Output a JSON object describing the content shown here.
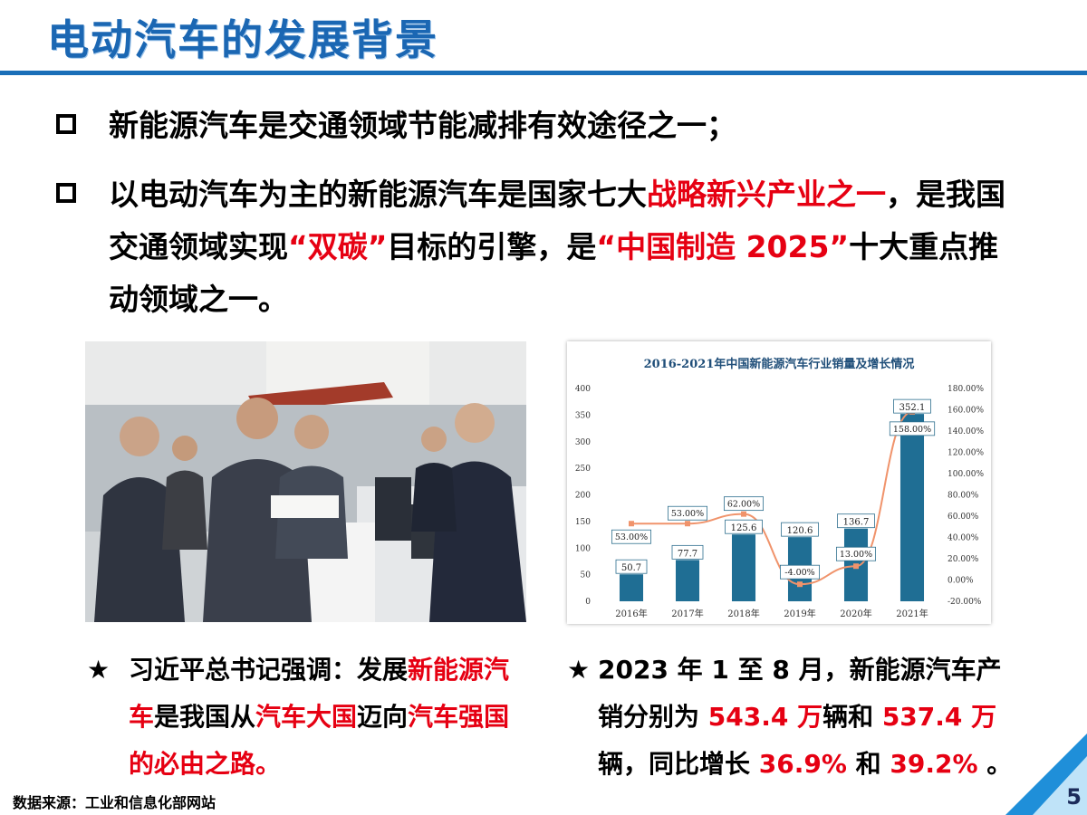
{
  "header": {
    "title": "电动汽车的发展背景"
  },
  "bullets": [
    {
      "parts": [
        {
          "text": "新能源汽车是交通领域节能减排有效途径之一；",
          "red": false
        }
      ]
    },
    {
      "parts": [
        {
          "text": "以电动汽车为主的新能源汽车是国家七大",
          "red": false
        },
        {
          "text": "战略新兴产业之一",
          "red": true
        },
        {
          "text": "，是我国交通领域实现",
          "red": false
        },
        {
          "text": "“双碳”",
          "red": true
        },
        {
          "text": "目标的引擎，是",
          "red": false
        },
        {
          "text": "“中国制造 2025”",
          "red": true
        },
        {
          "text": "十大重点推动领域之一。",
          "red": false
        }
      ]
    }
  ],
  "chart_data": {
    "type": "bar",
    "title": "2016-2021年中国新能源汽车行业销量及增长情况",
    "categories": [
      "2016年",
      "2017年",
      "2018年",
      "2019年",
      "2020年",
      "2021年"
    ],
    "series": [
      {
        "type": "bar",
        "values": [
          50.7,
          77.7,
          125.6,
          120.6,
          136.7,
          352.1
        ],
        "labels": [
          "50.7",
          "77.7",
          "125.6",
          "120.6",
          "136.7",
          "352.1"
        ]
      },
      {
        "type": "line",
        "axis": "right",
        "values": [
          53.0,
          53.0,
          62.0,
          -4.0,
          13.0,
          158.0
        ],
        "labels": [
          "53.00%",
          "53.00%",
          "62.00%",
          "-4.00%",
          "13.00%",
          "158.00%"
        ]
      }
    ],
    "ylim": [
      0,
      400
    ],
    "y_ticks": [
      "400",
      "350",
      "300",
      "250",
      "200",
      "150",
      "100",
      "50",
      "0"
    ],
    "y2lim": [
      -20,
      180
    ],
    "y2_ticks": [
      "180.00%",
      "160.00%",
      "140.00%",
      "120.00%",
      "100.00%",
      "80.00%",
      "60.00%",
      "40.00%",
      "20.00%",
      "0.00%",
      "-20.00%"
    ],
    "grid": false,
    "colors": {
      "bar": "#1f6e94",
      "line": "#f0936b",
      "title": "#1f4e79"
    }
  },
  "quotes": {
    "left": {
      "star": "★",
      "parts": [
        {
          "text": "习近平总书记强调：发展",
          "red": false
        },
        {
          "text": "新能源汽车",
          "red": true
        },
        {
          "text": "是我国从",
          "red": false
        },
        {
          "text": "汽车大国",
          "red": true
        },
        {
          "text": "迈向",
          "red": false
        },
        {
          "text": "汽车强国的必由之路。",
          "red": true
        }
      ]
    },
    "right": {
      "star": "★",
      "parts": [
        {
          "text": "2023 年 1 至 8 月，新能源汽车产销分别为 ",
          "red": false
        },
        {
          "text": "543.4 万",
          "red": true
        },
        {
          "text": "辆和 ",
          "red": false
        },
        {
          "text": "537.4 万",
          "red": true
        },
        {
          "text": "辆，同比增长 ",
          "red": false
        },
        {
          "text": "36.9%",
          "red": true
        },
        {
          "text": " 和 ",
          "red": false
        },
        {
          "text": "39.2%",
          "red": true
        },
        {
          "text": " 。",
          "red": false
        }
      ]
    }
  },
  "footer": {
    "source": "数据来源：工业和信息化部网站",
    "page_number": "5"
  },
  "colors": {
    "accent": "#1a6fb8",
    "highlight": "#e60012"
  }
}
